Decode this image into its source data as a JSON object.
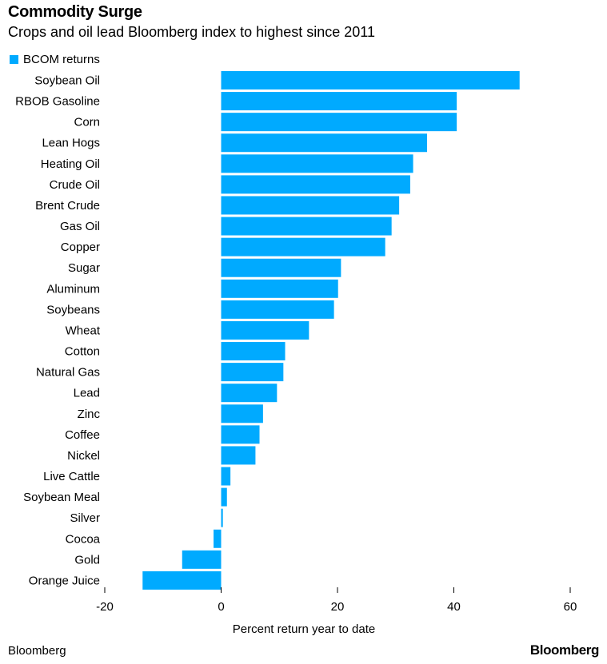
{
  "chart_data": {
    "type": "bar",
    "orientation": "horizontal",
    "title": "Commodity Surge",
    "subtitle": "Crops and oil lead Bloomberg index to highest since 2011",
    "xlabel": "Percent return year to date",
    "ylabel": "",
    "xlim": [
      -20,
      60
    ],
    "xticks": [
      -20,
      0,
      20,
      40,
      60
    ],
    "legend_position": "top-left",
    "grid": false,
    "categories": [
      "Soybean Oil",
      "RBOB Gasoline",
      "Corn",
      "Lean Hogs",
      "Heating Oil",
      "Crude Oil",
      "Brent Crude",
      "Gas Oil",
      "Copper",
      "Sugar",
      "Aluminum",
      "Soybeans",
      "Wheat",
      "Cotton",
      "Natural Gas",
      "Lead",
      "Zinc",
      "Coffee",
      "Nickel",
      "Live Cattle",
      "Soybean Meal",
      "Silver",
      "Cocoa",
      "Gold",
      "Orange Juice"
    ],
    "series": [
      {
        "name": "BCOM returns",
        "color": "#00aaff",
        "values": [
          51.3,
          40.5,
          40.5,
          35.4,
          33.0,
          32.5,
          30.6,
          29.3,
          28.2,
          20.6,
          20.1,
          19.4,
          15.1,
          11.0,
          10.7,
          9.6,
          7.2,
          6.6,
          5.9,
          1.6,
          1.0,
          0.3,
          -1.3,
          -6.7,
          -13.5
        ]
      }
    ]
  },
  "footer": {
    "source": "Bloomberg",
    "logo": "Bloomberg"
  }
}
